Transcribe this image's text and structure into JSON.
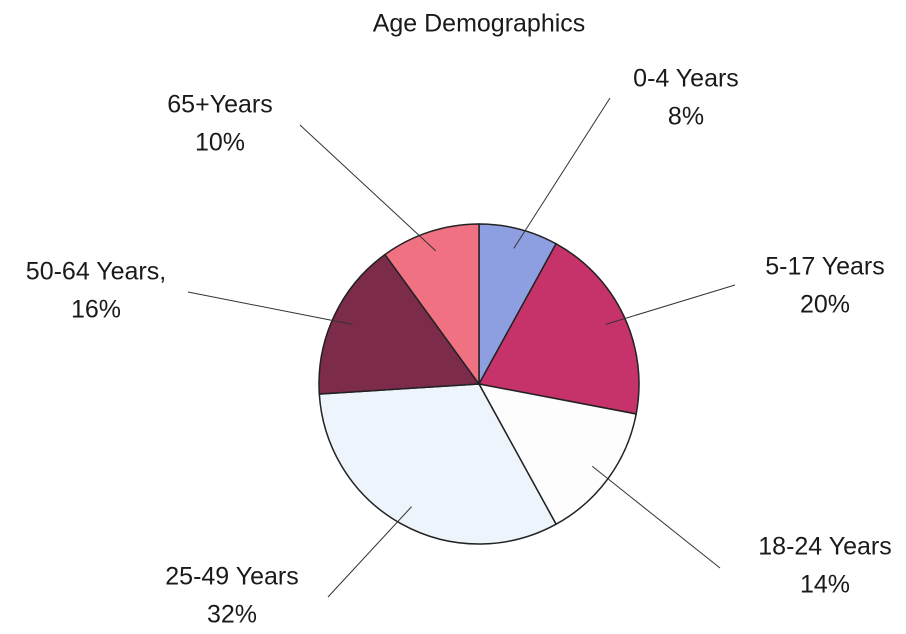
{
  "chart_data": {
    "type": "pie",
    "title": "Age Demographics",
    "categories": [
      "0-4 Years",
      "5-17 Years",
      "18-24 Years",
      "25-49 Years",
      "50-64 Years,",
      "65+Years"
    ],
    "values": [
      8,
      20,
      14,
      32,
      16,
      10
    ],
    "value_labels": [
      "8%",
      "20%",
      "14%",
      "32%",
      "16%",
      "10%"
    ],
    "colors": [
      "#8d9fe0",
      "#c6336b",
      "#fdfdfd",
      "#eef4fb",
      "#7c2b4b",
      "#f07282"
    ]
  }
}
